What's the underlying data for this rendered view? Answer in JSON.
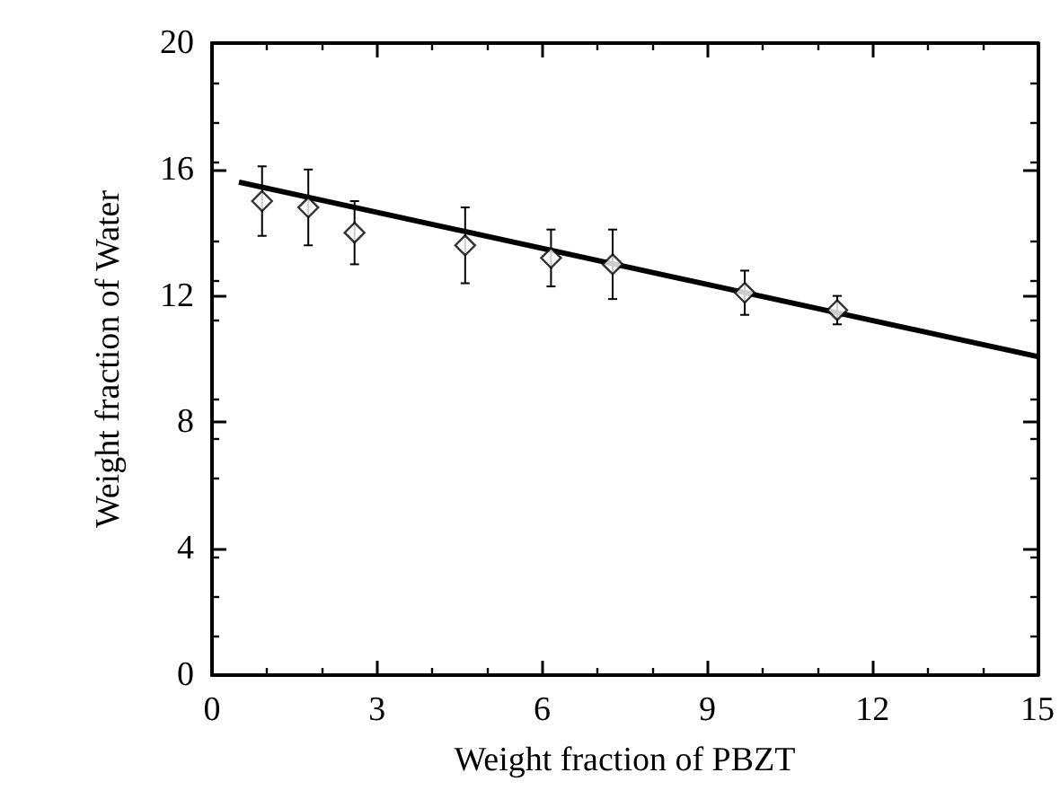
{
  "chart_data": {
    "type": "scatter",
    "xlabel": "Weight fraction of PBZT",
    "ylabel": "Weight fraction of Water",
    "xlim": [
      0,
      15
    ],
    "xticks": [
      0,
      3,
      6,
      9,
      12,
      15
    ],
    "ylim": [
      0,
      20
    ],
    "yticks": [
      0,
      4,
      8,
      12,
      16,
      20
    ],
    "grid": false,
    "legend": false,
    "series": [
      {
        "color": "#000000",
        "marker": "diamond",
        "x": [
          0.91,
          1.75,
          2.59,
          4.6,
          6.16,
          7.28,
          9.68,
          11.36
        ],
        "values": [
          15.0,
          14.8,
          14.0,
          13.6,
          13.2,
          13.0,
          12.1,
          11.55
        ],
        "errors": [
          1.1,
          1.2,
          1.0,
          1.2,
          0.9,
          1.1,
          0.7,
          0.45
        ]
      },
      {
        "type": "line",
        "color": "#000000",
        "marker": "none",
        "line_style": "solid",
        "x": [
          0.49,
          15
        ],
        "values": [
          15.6,
          10.08
        ]
      }
    ]
  }
}
